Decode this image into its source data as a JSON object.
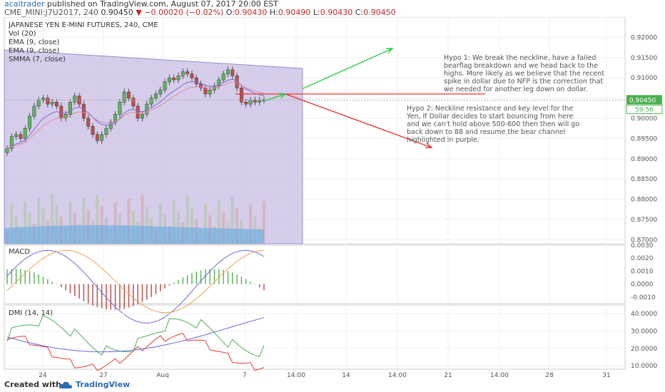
{
  "header": {
    "user": "acaitrader",
    "published": " published on TradingView.com, August 07, 2017 20:00 EST",
    "symbol": "CME_MINI:J7U2017, 240",
    "last": "0.90450",
    "change": "−0.00020 (−0.02%)",
    "open_label": "O:",
    "open": "0.90430",
    "high_label": "H:",
    "high": "0.90490",
    "low_label": "L:",
    "low": "0.90430",
    "close_label": "C:",
    "close": "0.90450"
  },
  "legend": {
    "title": "JAPANESE YEN E-MINI FUTURES, 240, CME",
    "items": [
      "Vol (20)",
      "EMA (9, close)",
      "EMA (9, close)",
      "SMMA (7, close)"
    ]
  },
  "annotations": {
    "hypo1": "Hypo 1: We break the neckline, have a failed bearflag breakdown and we head back to the highs. More likely as we believe that the recent spike in dollar due to NFP is the correction that we needed for another leg down on dollar.",
    "hypo2": "Hypo 2: Neckline resistance and key level for the Yen, If Dollar decides to start bouncing from here and we can't hold above 500-600 then then will go back down to 88 and resume the bear channel highlighted in purple."
  },
  "price_badges": {
    "last": "0.90450",
    "countdown": "59:56"
  },
  "footer": {
    "created": "Created with",
    "brand": "TradingView"
  },
  "colors": {
    "up": "#5cb85c",
    "down": "#c0504d",
    "channel": "#cfc4e6",
    "arrow_up": "#2ecc40",
    "arrow_down": "#e53935",
    "neckline": "#e53935",
    "ema1": "#7b6cd6",
    "ema2": "#e08aa0",
    "macd": "#6a6ae0",
    "signal": "#f0a050",
    "dmi_plus": "#4caf50",
    "dmi_minus": "#e53935",
    "adx": "#6a6ae0"
  },
  "chart_data": [
    {
      "type": "line",
      "name": "price",
      "ylim": [
        0.869,
        0.925
      ],
      "y_ticks": [
        "0.92000",
        "0.91500",
        "0.91000",
        "0.90500",
        "0.90000",
        "0.89500",
        "0.89000",
        "0.88500",
        "0.88000",
        "0.87500",
        "0.87000"
      ],
      "x_ticks": [
        "24",
        "27",
        "Aug",
        "7",
        "14:00",
        "14",
        "14:00",
        "21",
        "14:00",
        "28",
        "31"
      ],
      "candles_close": [
        0.8925,
        0.8955,
        0.896,
        0.895,
        0.8975,
        0.9005,
        0.903,
        0.9045,
        0.905,
        0.9035,
        0.904,
        0.903,
        0.9,
        0.901,
        0.904,
        0.9055,
        0.9035,
        0.9,
        0.898,
        0.896,
        0.8945,
        0.896,
        0.8975,
        0.899,
        0.901,
        0.904,
        0.9065,
        0.905,
        0.903,
        0.9,
        0.901,
        0.9035,
        0.905,
        0.906,
        0.907,
        0.909,
        0.91,
        0.9095,
        0.9105,
        0.9115,
        0.911,
        0.91,
        0.9085,
        0.9075,
        0.906,
        0.907,
        0.908,
        0.9095,
        0.911,
        0.912,
        0.9105,
        0.9075,
        0.904,
        0.9035,
        0.9045,
        0.904,
        0.9045,
        0.9045
      ]
    },
    {
      "type": "line",
      "name": "MACD",
      "ylim": [
        -0.0015,
        0.003
      ],
      "y_ticks": [
        "0.0030",
        "0.0020",
        "0.0010",
        "0.0000",
        "-0.0010"
      ]
    },
    {
      "type": "line",
      "name": "DMI (14, 14)",
      "ylim": [
        8,
        45
      ],
      "y_ticks": [
        "40.0000",
        "30.0000",
        "20.0000",
        "10.0000"
      ]
    }
  ]
}
